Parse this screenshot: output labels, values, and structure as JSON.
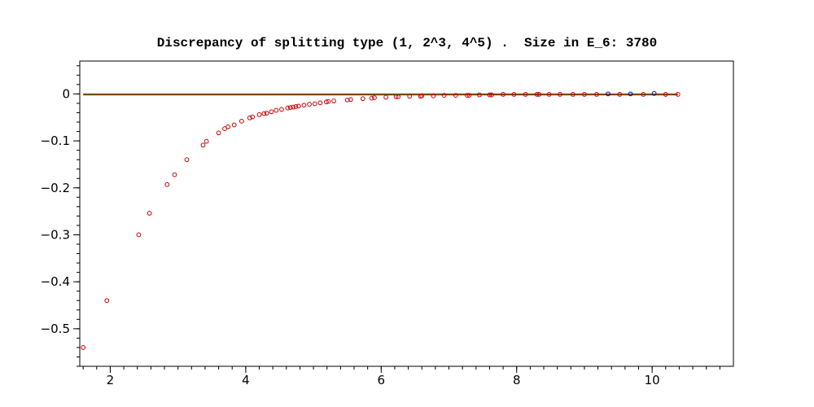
{
  "chart_data": {
    "type": "scatter",
    "title": "Discrepancy of splitting type (1, 2^3, 4^5) .  Size in E_6: 3780",
    "xlabel": "",
    "ylabel": "",
    "xlim": [
      1.55,
      11.2
    ],
    "ylim": [
      -0.58,
      0.07
    ],
    "x_ticks": [
      2,
      4,
      6,
      8,
      10
    ],
    "x_tick_labels": [
      "2",
      "4",
      "6",
      "8",
      "10"
    ],
    "y_ticks": [
      0,
      -0.1,
      -0.2,
      -0.3,
      -0.4,
      -0.5
    ],
    "y_tick_labels": [
      "0",
      "−0.1",
      "−0.2",
      "−0.3",
      "−0.4",
      "−0.5"
    ],
    "grid": false,
    "colors": {
      "red_series": "#cc0000",
      "blue_series": "#0000cc",
      "zero_line": "#00aa00",
      "frame": "#000000"
    },
    "reference_lines": [
      {
        "y": 0,
        "color": "#00aa00"
      },
      {
        "y": -0.002,
        "color": "#cc0000"
      }
    ],
    "series": [
      {
        "color": "#cc0000",
        "x": [
          1.6,
          1.95,
          2.42,
          2.58,
          2.84,
          2.95,
          3.13,
          3.37,
          3.42,
          3.6,
          3.69,
          3.74,
          3.83,
          3.94,
          4.06,
          4.1,
          4.2,
          4.27,
          4.31,
          4.38,
          4.45,
          4.53,
          4.62,
          4.66,
          4.7,
          4.74,
          4.78,
          4.86,
          4.94,
          5.02,
          5.1,
          5.19,
          5.22,
          5.3,
          5.5,
          5.55,
          5.73,
          5.86,
          5.9,
          6.07,
          6.22,
          6.25,
          6.42,
          6.58,
          6.6,
          6.77,
          6.93,
          7.1,
          7.27,
          7.3,
          7.45,
          7.6,
          7.63,
          7.8,
          7.96,
          8.13,
          8.3,
          8.33,
          8.48,
          8.64,
          8.83,
          9.0,
          9.18,
          9.52,
          9.87,
          10.2,
          10.38
        ],
        "y": [
          -0.54,
          -0.44,
          -0.3,
          -0.254,
          -0.193,
          -0.172,
          -0.14,
          -0.109,
          -0.101,
          -0.083,
          -0.074,
          -0.07,
          -0.066,
          -0.058,
          -0.051,
          -0.049,
          -0.044,
          -0.042,
          -0.041,
          -0.038,
          -0.035,
          -0.033,
          -0.03,
          -0.029,
          -0.028,
          -0.027,
          -0.026,
          -0.024,
          -0.022,
          -0.021,
          -0.019,
          -0.017,
          -0.016,
          -0.015,
          -0.013,
          -0.012,
          -0.01,
          -0.009,
          -0.008,
          -0.007,
          -0.006,
          -0.006,
          -0.005,
          -0.005,
          -0.004,
          -0.004,
          -0.003,
          -0.003,
          -0.003,
          -0.003,
          -0.002,
          -0.002,
          -0.002,
          -0.001,
          -0.001,
          -0.001,
          -0.001,
          -0.001,
          -0.001,
          -0.001,
          -0.001,
          -0.001,
          -0.001,
          -0.001,
          -0.001,
          -0.001,
          -0.001
        ]
      },
      {
        "color": "#0000cc",
        "x": [
          9.35,
          9.68,
          10.03
        ],
        "y": [
          0.0,
          0.0,
          0.001
        ]
      }
    ]
  }
}
